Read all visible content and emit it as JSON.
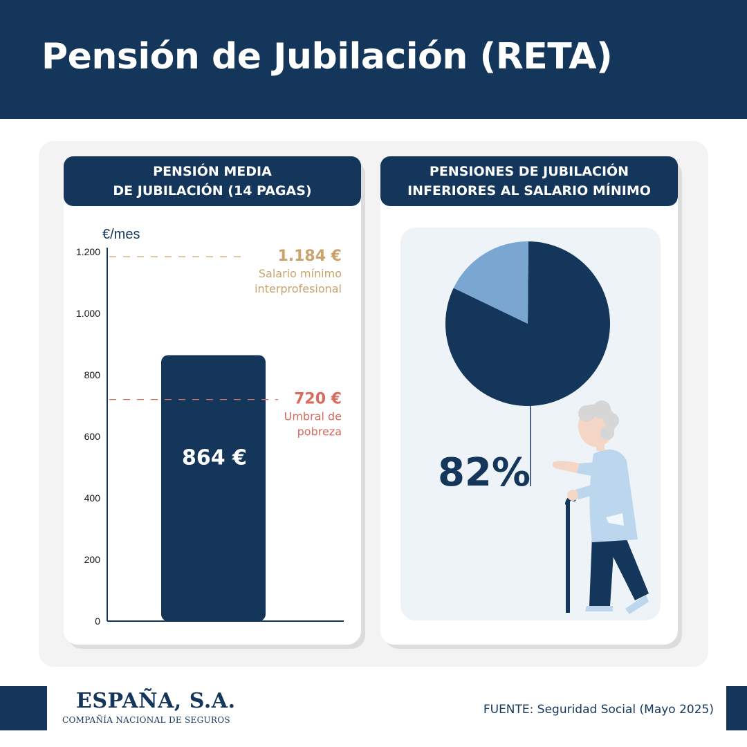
{
  "header": {
    "title": "Pensión de Jubilación (RETA)"
  },
  "left_card": {
    "title_lines": [
      "PENSIÓN MEDIA",
      "DE JUBILACIÓN (14 PAGAS)"
    ]
  },
  "right_card": {
    "title_lines": [
      "PENSIONES DE JUBILACIÓN",
      "INFERIORES AL SALARIO MÍNIMO"
    ]
  },
  "colors": {
    "navy": "#14365a",
    "gold": "#c9a36b",
    "red": "#d96a5e",
    "light_blue": "#7aa7d1"
  },
  "chart_data": [
    {
      "type": "bar",
      "ylabel": "€/mes",
      "ylim": [
        0,
        1200
      ],
      "yticks": [
        0,
        200,
        400,
        600,
        800,
        1000,
        1200
      ],
      "ytick_labels": [
        "0",
        "200",
        "400",
        "600",
        "800",
        "1.000",
        "1.200"
      ],
      "values": [
        864
      ],
      "data_labels": [
        "864 €"
      ],
      "reference_lines": [
        {
          "value": 1184,
          "label": "1.184 €",
          "note_lines": [
            "Salario mínimo",
            "interprofesional"
          ],
          "color": "#c9a36b"
        },
        {
          "value": 720,
          "label": "720 €",
          "note_lines": [
            "Umbral de",
            "pobreza"
          ],
          "color": "#d96a5e"
        }
      ]
    },
    {
      "type": "pie",
      "slices": [
        {
          "value": 82,
          "color": "#14365a"
        },
        {
          "value": 18,
          "color": "#7aa7d1"
        }
      ],
      "data_labels": [
        "82%"
      ]
    }
  ],
  "footer": {
    "logo_title": "ESPAÑA, S.A.",
    "logo_subtitle": "COMPAÑÍA NACIONAL DE SEGUROS",
    "source": "FUENTE: Seguridad Social (Mayo 2025)"
  }
}
